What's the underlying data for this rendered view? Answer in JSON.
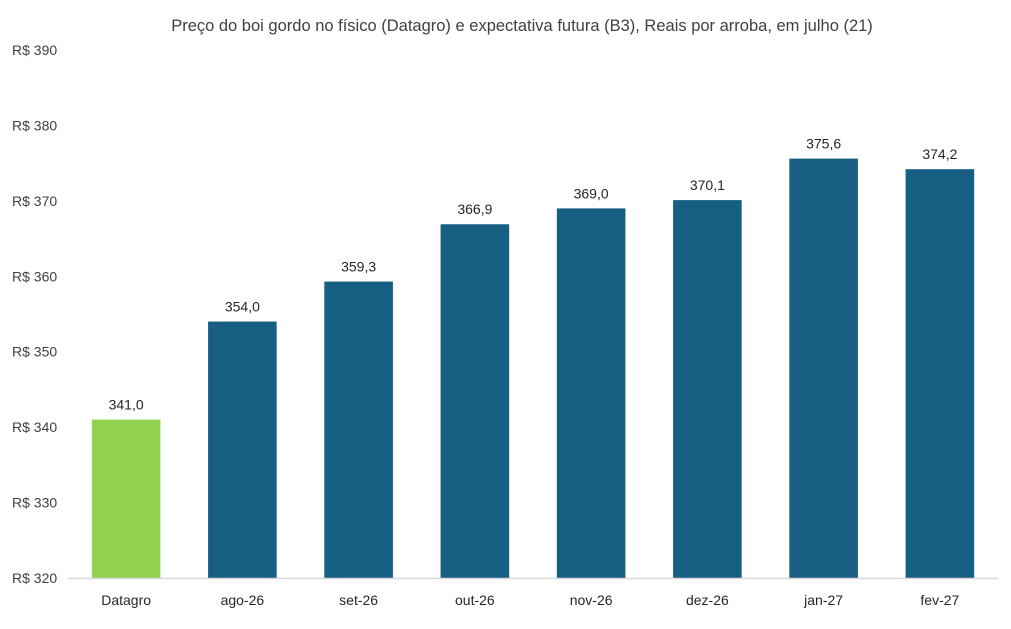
{
  "chart_data": {
    "type": "bar",
    "title": "Preço do boi gordo no físico (Datagro)  e expectativa futura (B3), Reais por arroba, em julho (21)",
    "xlabel": "",
    "ylabel": "",
    "categories": [
      "Datagro",
      "ago-26",
      "set-26",
      "out-26",
      "nov-26",
      "dez-26",
      "jan-27",
      "fev-27"
    ],
    "values": [
      341.0,
      354.0,
      359.3,
      366.9,
      369.0,
      370.1,
      375.6,
      374.2
    ],
    "value_labels": [
      "341,0",
      "354,0",
      "359,3",
      "366,9",
      "369,0",
      "370,1",
      "375,6",
      "374,2"
    ],
    "ylim": [
      320,
      390
    ],
    "yticks": [
      320,
      330,
      340,
      350,
      360,
      370,
      380,
      390
    ],
    "ytick_labels": [
      "R$ 320",
      "R$ 330",
      "R$ 340",
      "R$ 350",
      "R$ 360",
      "R$ 370",
      "R$ 380",
      "R$ 390"
    ],
    "grid": false,
    "legend": "none",
    "colors": {
      "highlight": "#92D050",
      "bar": "#175E83",
      "axis": "#D9D9D9"
    }
  }
}
